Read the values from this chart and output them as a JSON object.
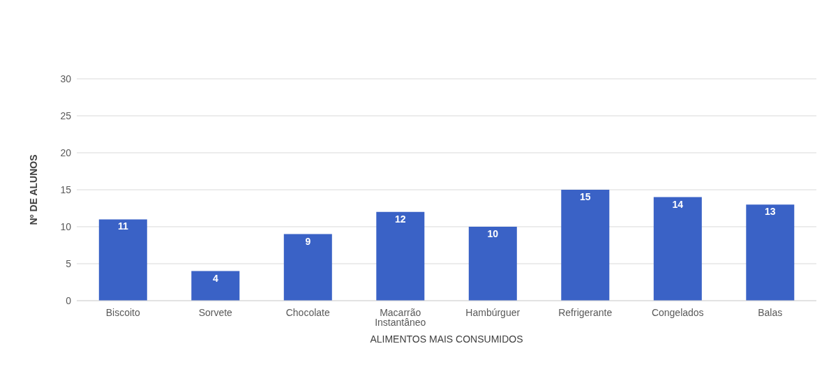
{
  "chart_data": {
    "type": "bar",
    "xlabel": "ALIMENTOS MAIS CONSUMIDOS",
    "ylabel": "Nº DE ALUNOS",
    "categories": [
      "Biscoito",
      "Sorvete",
      "Chocolate",
      "Macarrão Instantâneo",
      "Hambúrguer",
      "Refrigerante",
      "Congelados",
      "Balas"
    ],
    "values": [
      11,
      4,
      9,
      12,
      10,
      15,
      14,
      13
    ],
    "color": "#3a62c6",
    "ylim": [
      0,
      30
    ],
    "yticks": [
      0,
      5,
      10,
      15,
      20,
      25,
      30
    ],
    "grid": "y",
    "data_labels": true,
    "legend": false
  }
}
